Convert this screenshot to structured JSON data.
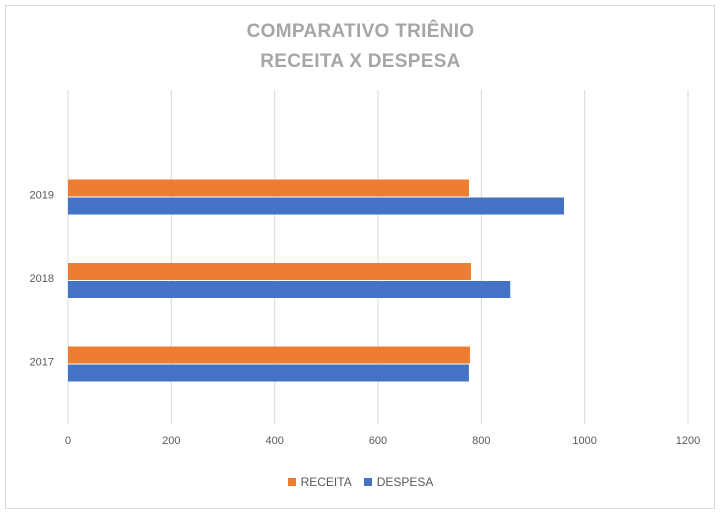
{
  "chart_data": {
    "type": "bar",
    "orientation": "horizontal",
    "title_line1": "COMPARATIVO  TRIÊNIO",
    "title_line2": "RECEITA X DESPESA",
    "categories": [
      "2017",
      "2018",
      "2019"
    ],
    "series": [
      {
        "name": "RECEITA",
        "color": "#ED7D31",
        "values": [
          778,
          780,
          776
        ]
      },
      {
        "name": "DESPESA",
        "color": "#4472C4",
        "values": [
          776,
          856,
          960
        ]
      }
    ],
    "xlim": [
      0,
      1200
    ],
    "xticks": [
      "0",
      "200",
      "400",
      "600",
      "800",
      "1000",
      "1200"
    ],
    "grid": true,
    "legend_position": "bottom"
  }
}
